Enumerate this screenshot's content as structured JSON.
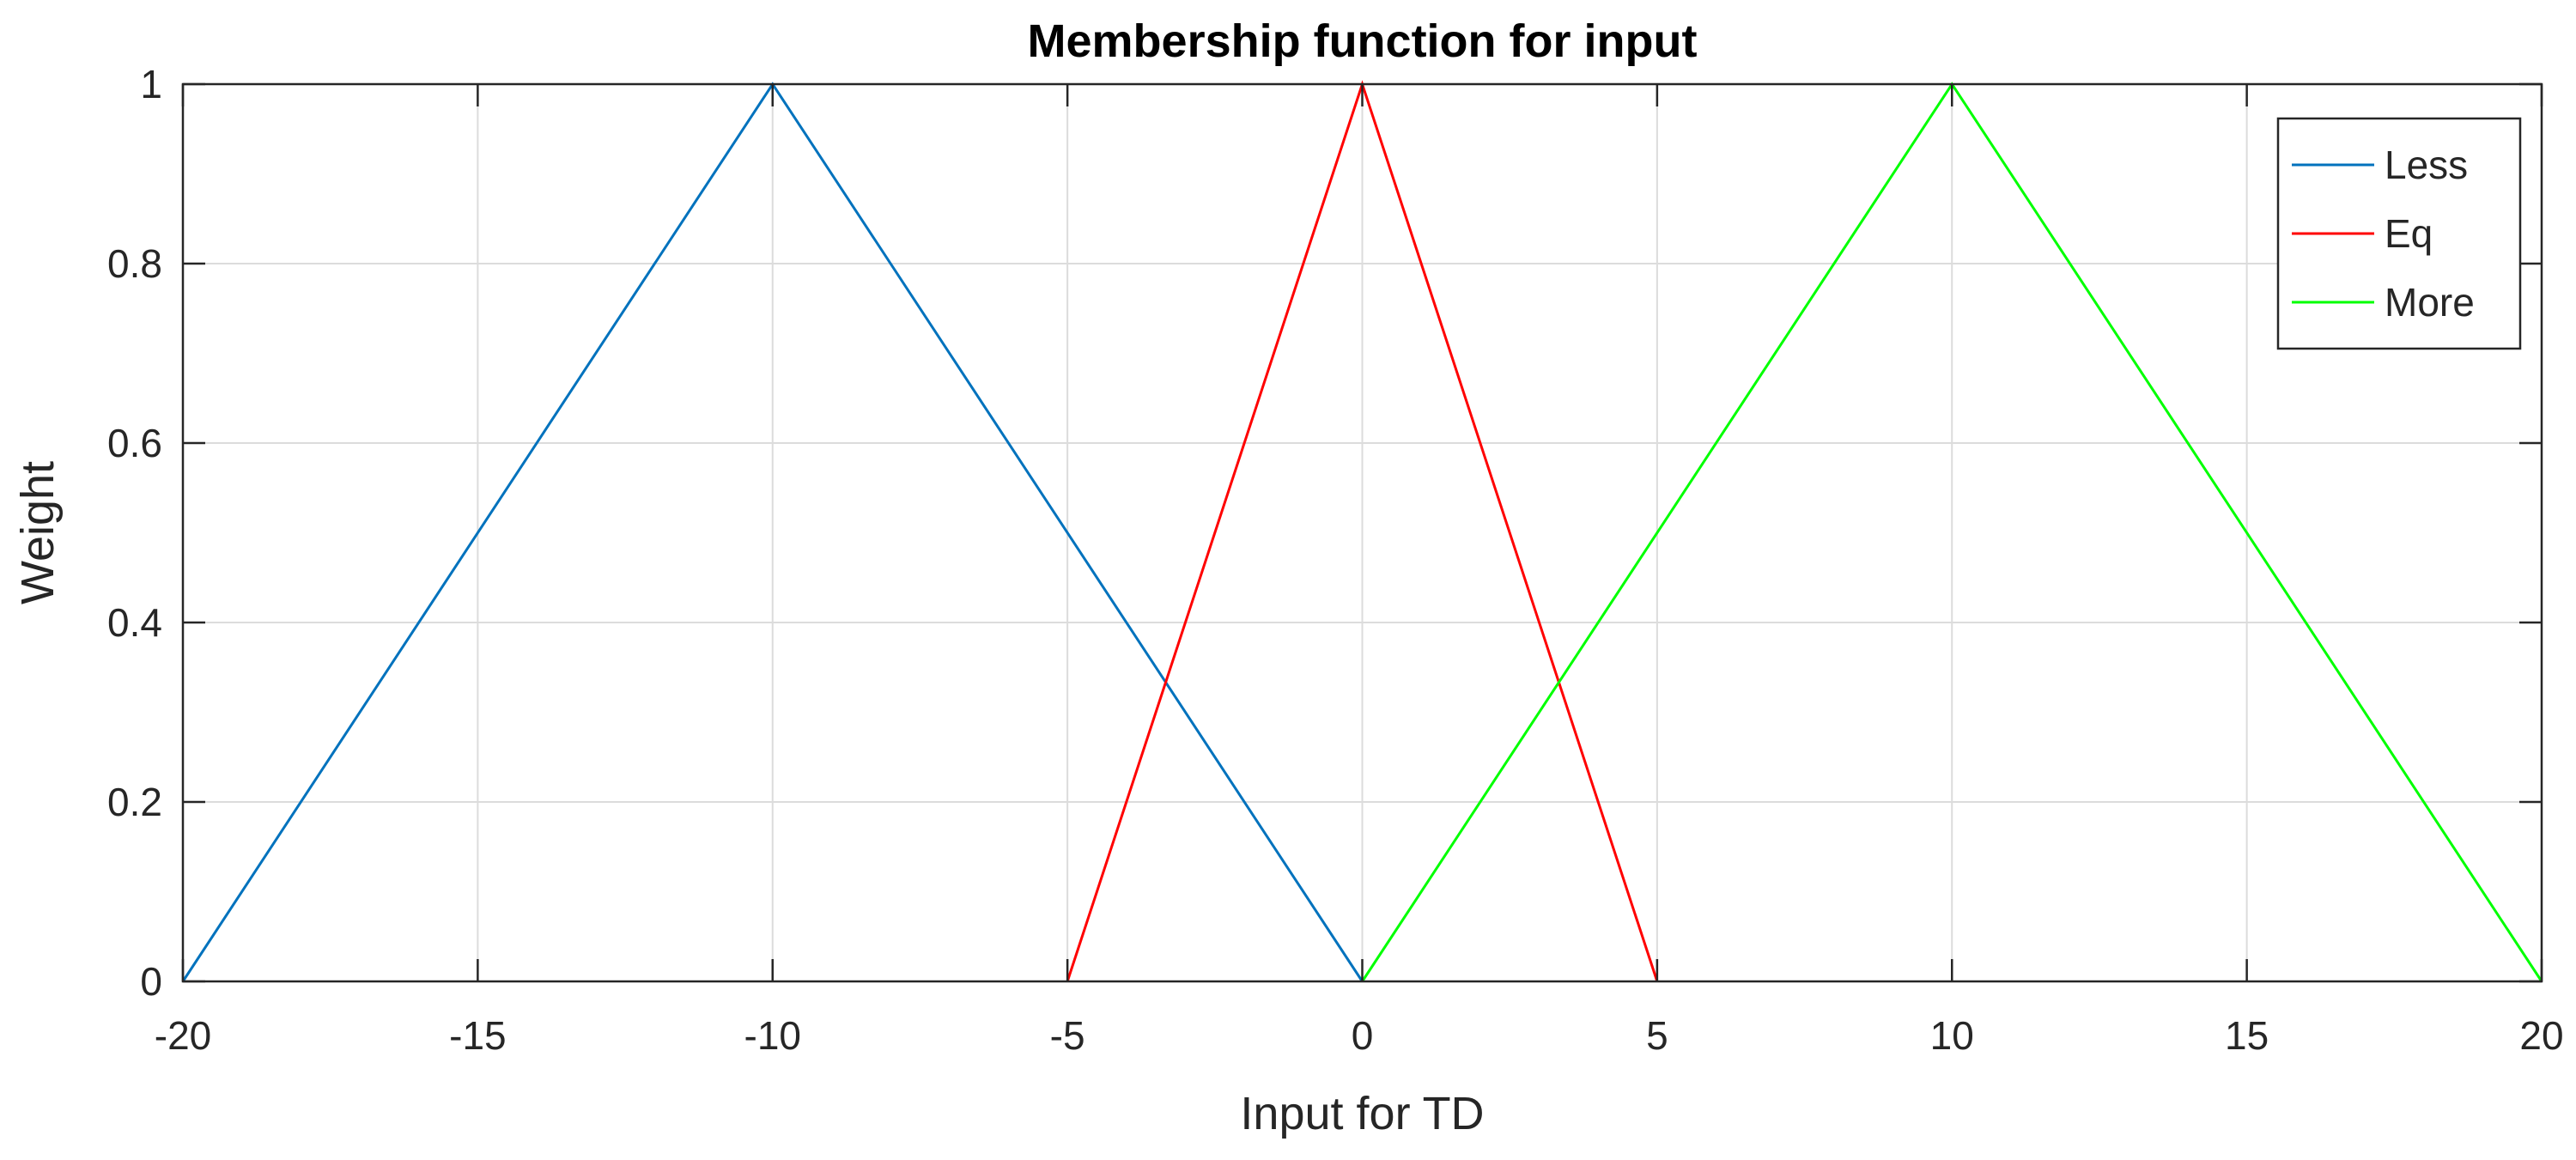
{
  "chart_data": {
    "type": "line",
    "title": "Membership function for input",
    "xlabel": "Input for TD",
    "ylabel": "Weight",
    "xlim": [
      -20,
      20
    ],
    "ylim": [
      0,
      1
    ],
    "xticks": [
      -20,
      -15,
      -10,
      -5,
      0,
      5,
      10,
      15,
      20
    ],
    "yticks": [
      0,
      0.2,
      0.4,
      0.6,
      0.8,
      1
    ],
    "xtick_labels": [
      "-20",
      "-15",
      "-10",
      "-5",
      "0",
      "5",
      "10",
      "15",
      "20"
    ],
    "ytick_labels": [
      "0",
      "0.2",
      "0.4",
      "0.6",
      "0.8",
      "1"
    ],
    "grid": true,
    "legend_position": "top-right",
    "series": [
      {
        "name": "Less",
        "color": "#0072BD",
        "x": [
          -20,
          -10,
          0
        ],
        "y": [
          0,
          1,
          0
        ]
      },
      {
        "name": "Eq",
        "color": "#FF0000",
        "x": [
          -5,
          0,
          5
        ],
        "y": [
          0,
          1,
          0
        ]
      },
      {
        "name": "More",
        "color": "#00FF00",
        "x": [
          0,
          10,
          20
        ],
        "y": [
          0,
          1,
          0
        ]
      }
    ]
  }
}
